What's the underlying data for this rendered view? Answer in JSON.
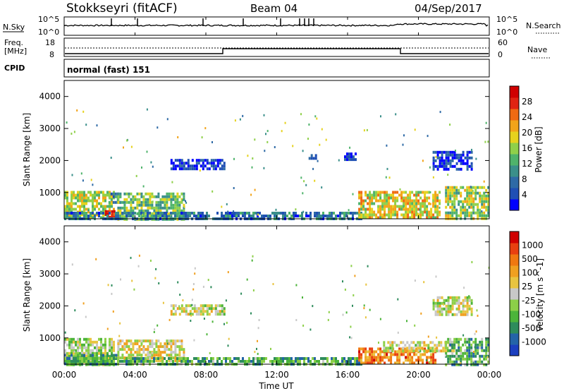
{
  "header": {
    "station": "Stokkseyri (fitACF)",
    "beam": "Beam 04",
    "date": "04/Sep/2017"
  },
  "noise_panel": {
    "left_label": "N.Sky",
    "right_label": "N.Search",
    "left_ticks": [
      "10^5",
      "10^0"
    ],
    "right_ticks": [
      "10^5",
      "10^0"
    ]
  },
  "freq_panel": {
    "left_label_1": "Freq.",
    "left_label_2": "[MHz]",
    "right_label": "Nave",
    "left_ticks": [
      "18",
      "8"
    ],
    "right_ticks": [
      "60",
      "0"
    ]
  },
  "cpid_panel": {
    "label": "CPID",
    "program": "normal (fast) 151"
  },
  "time_axis": {
    "title": "Time UT",
    "ticks": [
      "00:00",
      "04:00",
      "08:00",
      "12:00",
      "16:00",
      "20:00",
      "00:00"
    ]
  },
  "chart_data": [
    {
      "type": "heatmap",
      "name": "power",
      "xlabel": "Time UT",
      "ylabel": "Slant Range [km]",
      "ylim": [
        180,
        4500
      ],
      "yticks": [
        1000,
        2000,
        3000,
        4000
      ],
      "colorbar_label": "Power [dB]",
      "colorbar_ticks": [
        28,
        24,
        20,
        16,
        12,
        8,
        4
      ],
      "colors": [
        "#0000ff",
        "#1f4fb4",
        "#2e6aa6",
        "#3a8f8a",
        "#4fb36b",
        "#8fd04a",
        "#e6d21e",
        "#f2a41a",
        "#f06a12",
        "#e02412",
        "#d00000"
      ],
      "regions": [
        {
          "t0": 0.0,
          "t1": 2.8,
          "r0": 200,
          "r1": 1050,
          "level": 0.55
        },
        {
          "t0": 2.3,
          "t1": 3.0,
          "r0": 200,
          "r1": 450,
          "level": 0.95
        },
        {
          "t0": 2.5,
          "t1": 3.1,
          "r0": 700,
          "r1": 1000,
          "level": 0.3
        },
        {
          "t0": 3.0,
          "t1": 6.8,
          "r0": 200,
          "r1": 1000,
          "level": 0.45
        },
        {
          "t0": 0.0,
          "t1": 16.8,
          "r0": 180,
          "r1": 400,
          "level": 0.25
        },
        {
          "t0": 6.0,
          "t1": 9.0,
          "r0": 1750,
          "r1": 2050,
          "level": 0.1
        },
        {
          "t0": 13.8,
          "t1": 14.2,
          "r0": 2050,
          "r1": 2200,
          "level": 0.1
        },
        {
          "t0": 15.8,
          "t1": 16.4,
          "r0": 2000,
          "r1": 2250,
          "level": 0.1
        },
        {
          "t0": 16.6,
          "t1": 21.2,
          "r0": 200,
          "r1": 1050,
          "level": 0.6
        },
        {
          "t0": 20.8,
          "t1": 23.0,
          "r0": 1700,
          "r1": 2300,
          "level": 0.1
        },
        {
          "t0": 21.5,
          "t1": 24.0,
          "r0": 200,
          "r1": 1200,
          "level": 0.5
        }
      ]
    },
    {
      "type": "heatmap",
      "name": "velocity",
      "xlabel": "Time UT",
      "ylabel": "Slant Range [km]",
      "ylim": [
        180,
        4500
      ],
      "yticks": [
        1000,
        2000,
        3000,
        4000
      ],
      "colorbar_label": "Velocity [m s^-1]",
      "colorbar_ticks": [
        1000,
        500,
        100,
        25,
        -25,
        -100,
        -500,
        -1000
      ],
      "colors": [
        "#1c3fbf",
        "#2464a8",
        "#2e8c5c",
        "#4cb43a",
        "#8ccf48",
        "#c8c8c8",
        "#e8c440",
        "#f0a020",
        "#f07810",
        "#e84010",
        "#d00000"
      ],
      "regions": [
        {
          "t0": 0.0,
          "t1": 2.8,
          "r0": 200,
          "r1": 1000,
          "level": 0.45
        },
        {
          "t0": 0.0,
          "t1": 3.0,
          "r0": 200,
          "r1": 500,
          "level": 0.25
        },
        {
          "t0": 3.0,
          "t1": 6.8,
          "r0": 300,
          "r1": 950,
          "level": 0.55
        },
        {
          "t0": 0.0,
          "t1": 16.8,
          "r0": 180,
          "r1": 400,
          "level": 0.3
        },
        {
          "t0": 6.0,
          "t1": 9.0,
          "r0": 1750,
          "r1": 2050,
          "level": 0.5
        },
        {
          "t0": 16.6,
          "t1": 21.0,
          "r0": 200,
          "r1": 700,
          "level": 0.75
        },
        {
          "t0": 18.0,
          "t1": 22.0,
          "r0": 550,
          "r1": 900,
          "level": 0.5
        },
        {
          "t0": 20.8,
          "t1": 23.0,
          "r0": 1700,
          "r1": 2300,
          "level": 0.5
        },
        {
          "t0": 21.5,
          "t1": 24.0,
          "r0": 200,
          "r1": 1000,
          "level": 0.3
        }
      ]
    }
  ]
}
